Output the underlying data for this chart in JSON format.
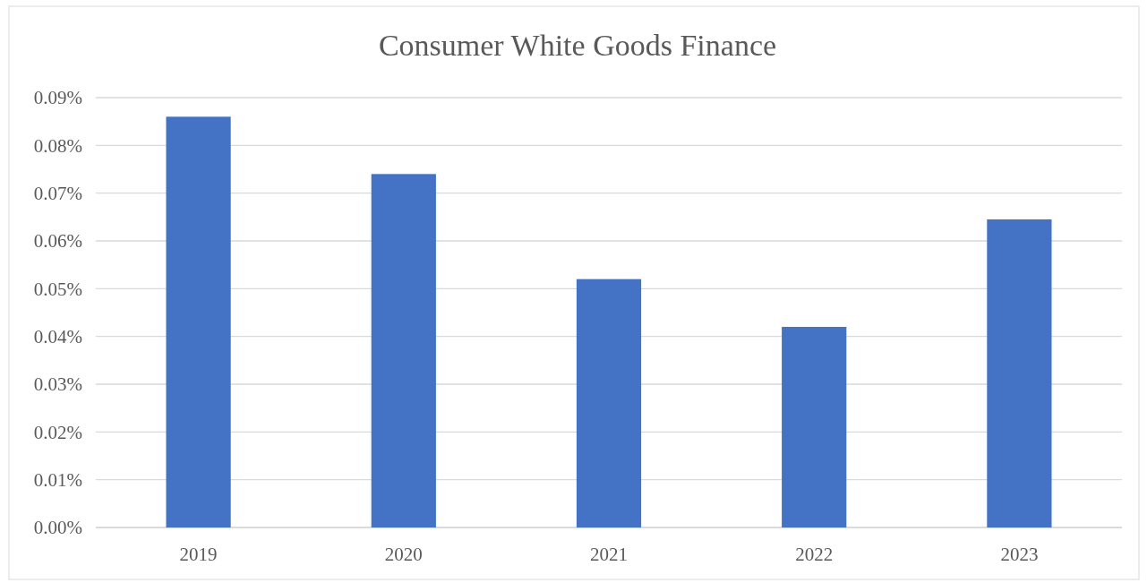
{
  "chart_data": {
    "type": "bar",
    "title": "Consumer White Goods Finance",
    "categories": [
      "2019",
      "2020",
      "2021",
      "2022",
      "2023"
    ],
    "values": [
      0.086,
      0.074,
      0.052,
      0.042,
      0.0645
    ],
    "color": "#4472c4",
    "ylim": [
      0,
      0.09
    ],
    "yticks": [
      {
        "value": 0,
        "label": "0.00%"
      },
      {
        "value": 0.01,
        "label": "0.01%"
      },
      {
        "value": 0.02,
        "label": "0.02%"
      },
      {
        "value": 0.03,
        "label": "0.03%"
      },
      {
        "value": 0.04,
        "label": "0.04%"
      },
      {
        "value": 0.05,
        "label": "0.05%"
      },
      {
        "value": 0.06,
        "label": "0.06%"
      },
      {
        "value": 0.07,
        "label": "0.07%"
      },
      {
        "value": 0.08,
        "label": "0.08%"
      },
      {
        "value": 0.09,
        "label": "0.09%"
      }
    ],
    "grid": "y"
  }
}
